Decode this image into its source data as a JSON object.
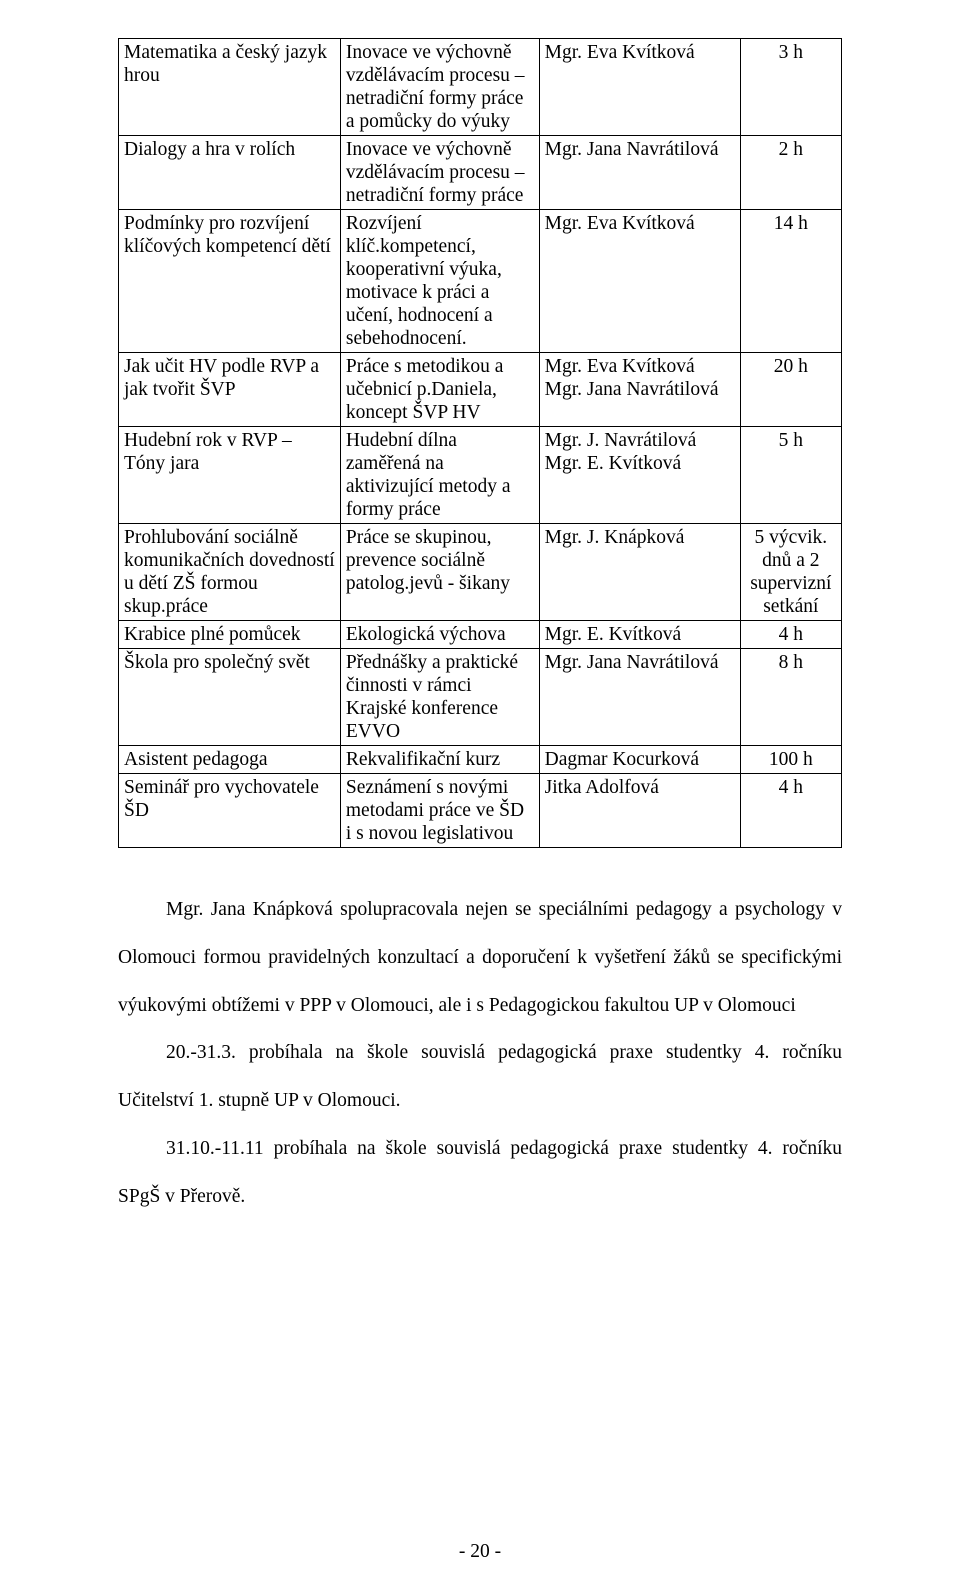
{
  "table": {
    "rows": [
      {
        "c1": "Matematika a český jazyk hrou",
        "c2": "Inovace ve výchovně vzdělávacím procesu – netradiční formy práce a pomůcky do výuky",
        "c3": "Mgr. Eva Kvítková",
        "c4": "3 h"
      },
      {
        "c1": "Dialogy a hra v rolích",
        "c2": "Inovace ve výchovně vzdělávacím procesu – netradiční formy práce",
        "c3": "Mgr. Jana Navrátilová",
        "c4": "2 h"
      },
      {
        "c1": "Podmínky pro rozvíjení klíčových kompetencí dětí",
        "c2": "Rozvíjení klíč.kompetencí, kooperativní výuka, motivace k práci a učení, hodnocení a sebehodnocení.",
        "c3": "Mgr. Eva Kvítková",
        "c4": "14 h"
      },
      {
        "c1": "Jak učit HV podle RVP a jak tvořit ŠVP",
        "c2": "Práce s metodikou a učebnicí p.Daniela, koncept ŠVP HV",
        "c3": "Mgr. Eva Kvítková\nMgr. Jana Navrátilová",
        "c4": "20 h"
      },
      {
        "c1": "Hudební rok v RVP – Tóny jara",
        "c2": "Hudební dílna zaměřená na aktivizující metody a formy práce",
        "c3": "Mgr. J. Navrátilová\nMgr. E. Kvítková",
        "c4": "5 h"
      },
      {
        "c1": "Prohlubování sociálně komunikačních dovedností u dětí ZŠ formou skup.práce",
        "c2": "Práce se skupinou, prevence sociálně patolog.jevů - šikany",
        "c3": "Mgr. J. Knápková",
        "c4": "5 výcvik. dnů a 2 supervizní setkání"
      },
      {
        "c1": "Krabice plné pomůcek",
        "c2": "Ekologická výchova",
        "c3": "Mgr. E. Kvítková",
        "c4": "4 h"
      },
      {
        "c1": "Škola pro společný svět",
        "c2": "Přednášky a praktické činnosti v rámci Krajské konference EVVO",
        "c3": "Mgr. Jana Navrátilová",
        "c4": "8 h"
      },
      {
        "c1": "Asistent pedagoga",
        "c2": "Rekvalifikační kurz",
        "c3": "Dagmar Kocurková",
        "c4": "100 h"
      },
      {
        "c1": "Seminář pro vychovatele ŠD",
        "c2": "Seznámení s novými metodami práce ve ŠD i s novou legislativou",
        "c3": "Jitka Adolfová",
        "c4": "4 h"
      }
    ]
  },
  "paragraphs": {
    "p1": "Mgr. Jana Knápková spolupracovala nejen se speciálními pedagogy a psychology v Olomouci formou pravidelných konzultací a doporučení k vyšetření žáků se specifickými výukovými obtížemi v PPP v Olomouci, ale i s Pedagogickou fakultou UP v Olomouci",
    "p2": "20.-31.3. probíhala na škole souvislá pedagogická praxe studentky 4. ročníku Učitelství 1. stupně UP v Olomouci.",
    "p3": "31.10.-11.11 probíhala na škole souvislá pedagogická praxe studentky 4. ročníku SPgŠ v Přerově."
  },
  "page_number": "- 20 -"
}
